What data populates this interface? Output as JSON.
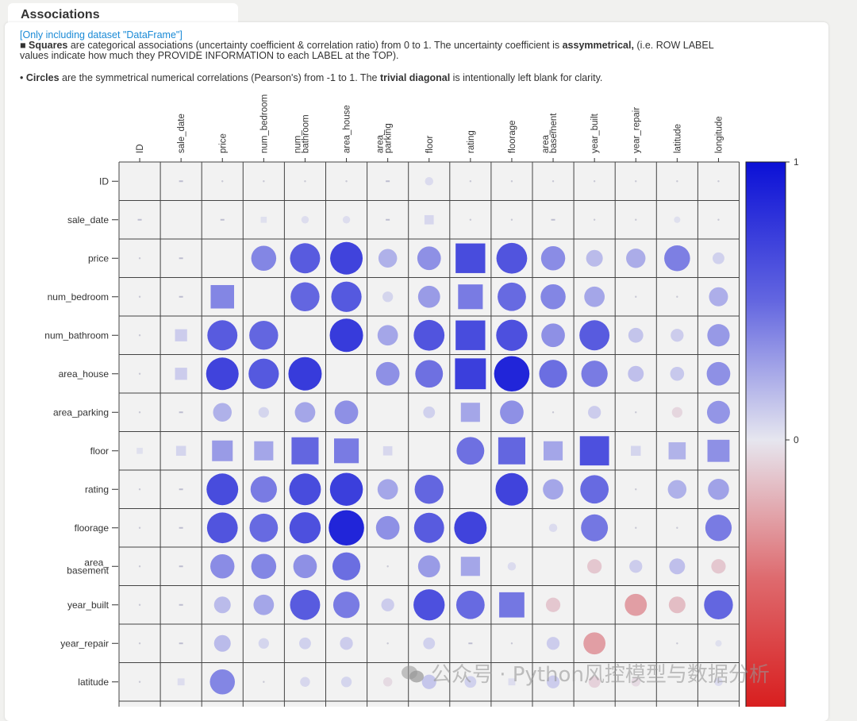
{
  "header": {
    "title": "Associations",
    "dataset_note": "[Only including dataset \"DataFrame\"]",
    "line2_bullet": "■ ",
    "line2_bold": "Squares",
    "line2_text": " are categorical associations (uncertainty coefficient & correlation ratio) from 0 to 1. The uncertainty coefficient is ",
    "line2_bold2": "assymmetrical,",
    "line2_text2": " (i.e. ROW LABEL",
    "line3": "values indicate how much they PROVIDE INFORMATION to each LABEL at the TOP).",
    "line4_bullet": "• ",
    "line4_bold": "Circles",
    "line4_text": " are the symmetrical numerical correlations (Pearson's) from -1 to 1. The ",
    "line4_bold2": "trivial diagonal",
    "line4_text2": " is intentionally left blank for clarity."
  },
  "watermark": "公众号 · Python风控模型与数据分析",
  "chart_data": {
    "type": "heatmap",
    "title": "Associations",
    "columns": [
      "ID",
      "sale_date",
      "price",
      "num_bedroom",
      "num_\nbathroom",
      "area_house",
      "area_\nparking",
      "floor",
      "rating",
      "floorage",
      "area_\nbasement",
      "year_built",
      "year_repair",
      "latitude",
      "longitude"
    ],
    "rows": [
      "ID",
      "sale_date",
      "price",
      "num_bedroom",
      "num_bathroom",
      "area_house",
      "area_parking",
      "floor",
      "rating",
      "floorage",
      "area_\nbasement",
      "year_built",
      "year_repair",
      "latitude"
    ],
    "colorbar": {
      "min": -1,
      "max": 1,
      "ticks": [
        "1",
        "0"
      ]
    },
    "colors": {
      "positive": "#0b10d6",
      "neutral": "#e6e6ef",
      "negative": "#d81818",
      "grid": "#444444"
    },
    "shapes": [
      "-sccccsccccccc",
      "s-ssccssccsccc",
      "cs-cccccscccccc",
      "css-ccccsccccccc",
      "cscc-cccscccccc",
      "csccc-ccscccccc",
      "cscccc-csccccccc",
      "ssssssss-ssssssss",
      "csccccccs-cccccc",
      "cscccccccsc-ccccc",
      "csccccccscc-cccc",
      "cscccccccsccc-cc",
      "csccccccsccccc-c",
      "cscccccccsccccc"
    ],
    "values": [
      [
        null,
        0.02,
        0.02,
        0.02,
        0.02,
        0.02,
        0.02,
        0.05,
        0.02,
        0.02,
        0.02,
        0.02,
        0.02,
        0.02,
        0.02
      ],
      [
        0.02,
        null,
        0.02,
        0.03,
        0.04,
        0.04,
        0.02,
        0.07,
        0.02,
        0.02,
        0.02,
        0.02,
        0.02,
        0.03,
        0.02
      ],
      [
        0.02,
        0.02,
        null,
        0.45,
        0.65,
        0.76,
        0.25,
        0.4,
        0.72,
        0.68,
        0.42,
        0.2,
        0.27,
        0.48,
        0.1
      ],
      [
        0.02,
        0.02,
        0.45,
        null,
        0.6,
        0.66,
        0.08,
        0.35,
        0.5,
        0.58,
        0.45,
        0.3,
        0.02,
        0.02,
        0.26
      ],
      [
        0.02,
        0.12,
        0.65,
        0.6,
        null,
        0.8,
        0.3,
        0.68,
        0.72,
        0.7,
        0.4,
        0.65,
        0.16,
        0.12,
        0.36
      ],
      [
        0.02,
        0.12,
        0.76,
        0.66,
        0.8,
        null,
        0.4,
        0.55,
        0.78,
        0.9,
        0.56,
        0.5,
        0.18,
        0.14,
        0.4
      ],
      [
        0.02,
        0.02,
        0.25,
        0.08,
        0.3,
        0.4,
        null,
        0.1,
        0.3,
        0.4,
        0.02,
        0.12,
        0.02,
        -0.08,
        0.38
      ],
      [
        0.03,
        0.08,
        0.35,
        0.3,
        0.6,
        0.5,
        0.07,
        null,
        0.55,
        0.6,
        0.3,
        0.7,
        0.08,
        0.24,
        0.4
      ],
      [
        0.02,
        0.02,
        0.72,
        0.5,
        0.72,
        0.78,
        0.3,
        0.6,
        null,
        0.76,
        0.3,
        0.58,
        0.02,
        0.25,
        0.32
      ],
      [
        0.02,
        0.02,
        0.68,
        0.58,
        0.7,
        0.9,
        0.4,
        0.65,
        0.76,
        null,
        0.05,
        0.52,
        0.02,
        0.02,
        0.5
      ],
      [
        0.02,
        0.02,
        0.42,
        0.45,
        0.4,
        0.56,
        0.02,
        0.35,
        0.3,
        0.05,
        null,
        -0.15,
        0.12,
        0.18,
        -0.15
      ],
      [
        0.02,
        0.02,
        0.2,
        0.3,
        0.65,
        0.5,
        0.12,
        0.7,
        0.58,
        0.52,
        -0.15,
        null,
        -0.35,
        -0.2,
        0.6
      ],
      [
        0.02,
        0.02,
        0.2,
        0.08,
        0.1,
        0.12,
        0.02,
        0.1,
        0.02,
        0.02,
        0.12,
        -0.35,
        null,
        0.02,
        0.03
      ],
      [
        0.02,
        0.04,
        0.45,
        0.02,
        0.07,
        0.08,
        -0.06,
        0.15,
        0.1,
        0.04,
        0.12,
        -0.1,
        -0.06,
        null,
        0.05
      ]
    ]
  }
}
